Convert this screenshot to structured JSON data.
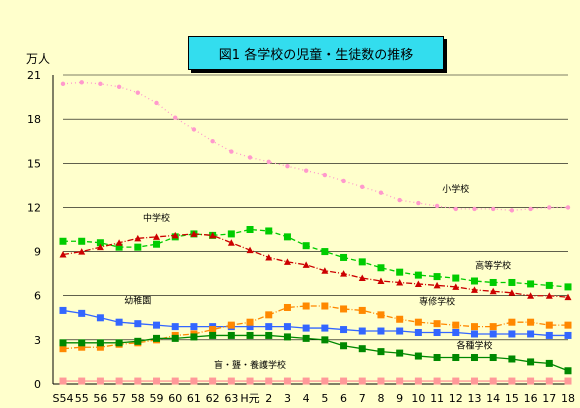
{
  "chart_data": {
    "type": "line",
    "title": "図1 各学校の児童・生徒数の推移",
    "unit": "万人",
    "ylim": [
      0,
      21
    ],
    "y_ticks": [
      "0",
      "3",
      "6",
      "9",
      "12",
      "15",
      "18",
      "21"
    ],
    "grid": true,
    "x": [
      "S54",
      "55",
      "56",
      "57",
      "58",
      "59",
      "60",
      "61",
      "62",
      "63",
      "H元",
      "2",
      "3",
      "4",
      "5",
      "6",
      "7",
      "8",
      "9",
      "10",
      "11",
      "12",
      "13",
      "14",
      "15",
      "16",
      "17",
      "18"
    ],
    "x_tick_labels": [
      "S54",
      "55",
      "56",
      "57",
      "58",
      "59",
      "60",
      "61",
      "62",
      "63",
      "H元",
      "2",
      "3",
      "4",
      "5",
      "6",
      "7",
      "8",
      "9",
      "10",
      "11",
      "12",
      "13",
      "14",
      "15",
      "16",
      "17",
      "18"
    ],
    "series": [
      {
        "name": "小学校",
        "color": "#ff99cc",
        "marker": "circle",
        "line": "dotted",
        "values": [
          20.4,
          20.5,
          20.4,
          20.2,
          19.8,
          19.1,
          18.1,
          17.3,
          16.5,
          15.8,
          15.4,
          15.1,
          14.8,
          14.5,
          14.2,
          13.8,
          13.4,
          13.0,
          12.5,
          12.3,
          12.1,
          11.9,
          11.9,
          11.9,
          11.8,
          11.9,
          12.0,
          12.0
        ]
      },
      {
        "name": "中学校",
        "color": "#00cc00",
        "marker": "square",
        "line": "dashed",
        "values": [
          9.7,
          9.7,
          9.6,
          9.3,
          9.3,
          9.5,
          10.0,
          10.2,
          10.1,
          10.2,
          10.5,
          10.4,
          10.0,
          9.4,
          9.0,
          8.6,
          8.3,
          7.9,
          7.6,
          7.4,
          7.3,
          7.2,
          7.0,
          6.9,
          6.9,
          6.8,
          6.7,
          6.6
        ]
      },
      {
        "name": "高等学校",
        "color": "#cc0000",
        "marker": "triangle",
        "line": "dashdot",
        "values": [
          8.8,
          9.0,
          9.3,
          9.6,
          9.9,
          10.0,
          10.1,
          10.2,
          10.1,
          9.6,
          9.1,
          8.6,
          8.3,
          8.1,
          7.7,
          7.5,
          7.2,
          7.0,
          6.9,
          6.8,
          6.7,
          6.6,
          6.4,
          6.3,
          6.2,
          6.0,
          6.0,
          5.9
        ]
      },
      {
        "name": "幼稚園",
        "color": "#3366ff",
        "marker": "square",
        "line": "solid",
        "values": [
          5.0,
          4.8,
          4.5,
          4.2,
          4.1,
          4.0,
          3.9,
          3.9,
          3.9,
          3.9,
          3.9,
          3.9,
          3.9,
          3.8,
          3.8,
          3.7,
          3.6,
          3.6,
          3.6,
          3.5,
          3.5,
          3.5,
          3.4,
          3.4,
          3.4,
          3.4,
          3.3,
          3.3
        ]
      },
      {
        "name": "専修学校",
        "color": "#ff8800",
        "marker": "square",
        "line": "dashdot",
        "values": [
          2.4,
          2.5,
          2.5,
          2.7,
          2.8,
          3.0,
          3.3,
          3.4,
          3.7,
          4.0,
          4.2,
          4.7,
          5.2,
          5.3,
          5.3,
          5.1,
          5.0,
          4.7,
          4.4,
          4.2,
          4.1,
          4.0,
          3.9,
          3.9,
          4.2,
          4.2,
          4.0,
          4.0
        ]
      },
      {
        "name": "各種学校",
        "color": "#008800",
        "marker": "square",
        "line": "solid",
        "values": [
          2.8,
          2.8,
          2.8,
          2.8,
          2.9,
          3.1,
          3.1,
          3.2,
          3.3,
          3.3,
          3.3,
          3.3,
          3.2,
          3.1,
          3.0,
          2.6,
          2.4,
          2.2,
          2.1,
          1.9,
          1.8,
          1.8,
          1.8,
          1.8,
          1.7,
          1.5,
          1.4,
          0.9
        ]
      },
      {
        "name": "盲・聾・養護学校",
        "color": "#ff9999",
        "marker": "square",
        "line": "solid",
        "values": [
          0.2,
          0.2,
          0.2,
          0.2,
          0.2,
          0.2,
          0.2,
          0.2,
          0.2,
          0.2,
          0.2,
          0.2,
          0.2,
          0.2,
          0.2,
          0.2,
          0.2,
          0.2,
          0.2,
          0.2,
          0.2,
          0.2,
          0.2,
          0.2,
          0.2,
          0.2,
          0.2,
          0.2
        ]
      }
    ],
    "series_labels": [
      {
        "text": "小学校",
        "series": 0
      },
      {
        "text": "中学校",
        "series": 1
      },
      {
        "text": "高等学校",
        "series": 2
      },
      {
        "text": "幼稚園",
        "series": 3
      },
      {
        "text": "専修学校",
        "series": 4
      },
      {
        "text": "各種学校",
        "series": 5
      },
      {
        "text": "盲・聾・養護学校",
        "series": 6
      }
    ]
  }
}
